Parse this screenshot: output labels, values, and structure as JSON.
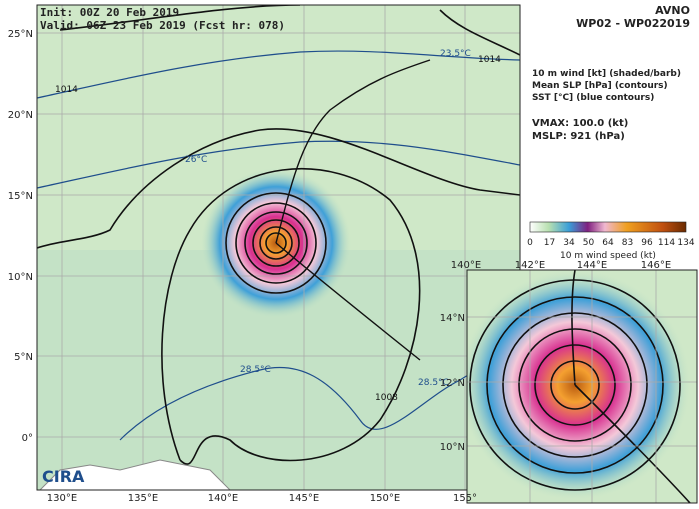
{
  "header": {
    "init": "Init:   00Z 20 Feb 2019",
    "valid": "Valid: 06Z 23 Feb 2019 (Fcst hr: 078)",
    "model": "AVNO",
    "storm": "WP02 - WP022019"
  },
  "legend": {
    "lines": [
      "10 m wind [kt] (shaded/barb)",
      "Mean SLP [hPa] (contours)",
      "SST [°C] (blue contours)"
    ],
    "vmax": "VMAX: 100.0 (kt)",
    "mslp": "MSLP:  921 (hPa)"
  },
  "main_map": {
    "lat_labels": [
      "25°N",
      "20°N",
      "15°N",
      "10°N",
      "5°N",
      "0°"
    ],
    "lon_labels": [
      "130°E",
      "135°E",
      "140°E",
      "145°E",
      "150°E",
      "155°"
    ],
    "contour_labels": [
      "1014",
      "1014",
      "23.5°C",
      "26°C",
      "28.5°C",
      "28.5°C",
      "1008"
    ],
    "logo": "CIRA"
  },
  "colorbar": {
    "ticks": [
      "0",
      "17",
      "34",
      "50",
      "64",
      "83",
      "96",
      "114",
      "134"
    ],
    "label": "10 m wind speed (kt)"
  },
  "inset_map": {
    "lon_labels": [
      "140°E",
      "142°E",
      "144°E",
      "146°E"
    ],
    "lat_labels": [
      "14°N",
      "12°N",
      "10°N"
    ]
  }
}
